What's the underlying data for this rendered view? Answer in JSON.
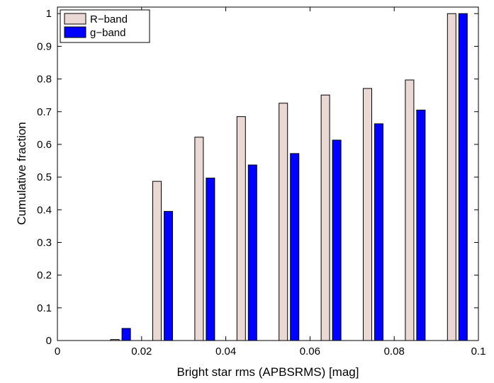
{
  "chart_data": {
    "type": "bar",
    "xlabel": "Bright star rms (APBSRMS) [mag]",
    "ylabel": "Cumulative fraction",
    "xlim": [
      0,
      0.1
    ],
    "ylim": [
      0,
      1.02
    ],
    "x_ticks": [
      "0",
      "0.02",
      "0.04",
      "0.06",
      "0.08",
      "0.1"
    ],
    "y_ticks": [
      "0",
      "0.1",
      "0.2",
      "0.3",
      "0.4",
      "0.5",
      "0.6",
      "0.7",
      "0.8",
      "0.9",
      "1"
    ],
    "x": [
      0.005,
      0.015,
      0.025,
      0.035,
      0.045,
      0.055,
      0.065,
      0.075,
      0.085,
      0.095
    ],
    "series": [
      {
        "name": "R−band",
        "color": "#ead8d4",
        "values": [
          0.0,
          0.003,
          0.487,
          0.622,
          0.685,
          0.726,
          0.751,
          0.771,
          0.797,
          1.0
        ]
      },
      {
        "name": "g−band",
        "color": "#0000ff",
        "values": [
          0.0,
          0.037,
          0.395,
          0.497,
          0.537,
          0.572,
          0.613,
          0.663,
          0.705,
          1.0
        ]
      }
    ],
    "legend_position": "top-left",
    "grid": false
  }
}
